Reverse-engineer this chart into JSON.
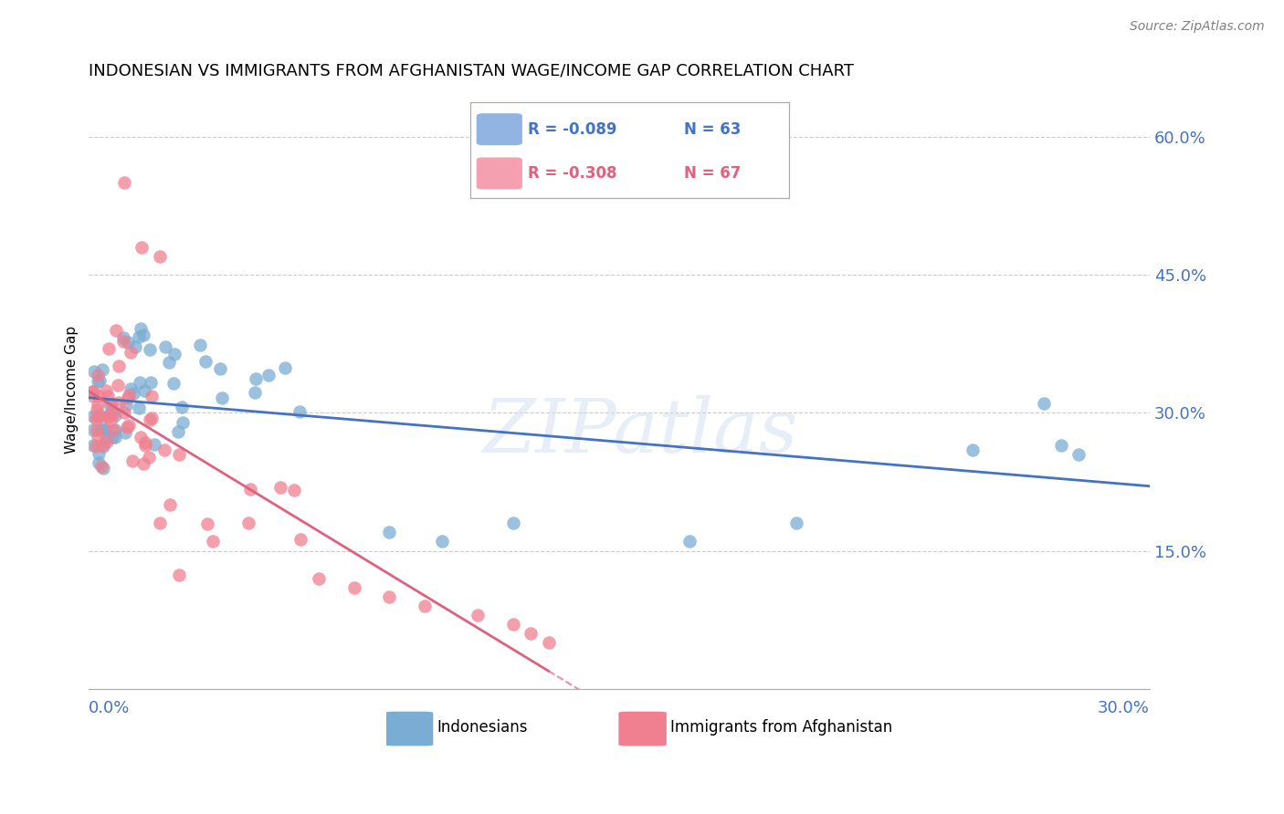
{
  "title": "INDONESIAN VS IMMIGRANTS FROM AFGHANISTAN WAGE/INCOME GAP CORRELATION CHART",
  "source": "Source: ZipAtlas.com",
  "ylabel": "Wage/Income Gap",
  "right_yticks": [
    0.15,
    0.3,
    0.45,
    0.6
  ],
  "xmin": 0.0,
  "xmax": 0.3,
  "ymin": 0.0,
  "ymax": 0.65,
  "legend_entries": [
    {
      "label_r": "R = -0.089",
      "label_n": "N = 63",
      "color": "#92b4e3"
    },
    {
      "label_r": "R = -0.308",
      "label_n": "N = 67",
      "color": "#f4a0b0"
    }
  ],
  "indonesians": {
    "color": "#7badd4",
    "scatter_color": "#7badd4",
    "x": [
      0.001,
      0.001,
      0.002,
      0.002,
      0.003,
      0.003,
      0.003,
      0.004,
      0.004,
      0.004,
      0.005,
      0.005,
      0.005,
      0.006,
      0.006,
      0.006,
      0.007,
      0.007,
      0.008,
      0.008,
      0.008,
      0.009,
      0.009,
      0.01,
      0.01,
      0.011,
      0.011,
      0.012,
      0.013,
      0.014,
      0.015,
      0.015,
      0.016,
      0.016,
      0.017,
      0.018,
      0.019,
      0.02,
      0.021,
      0.022,
      0.023,
      0.025,
      0.026,
      0.027,
      0.028,
      0.03,
      0.032,
      0.034,
      0.036,
      0.04,
      0.042,
      0.045,
      0.05,
      0.055,
      0.06,
      0.065,
      0.075,
      0.085,
      0.17,
      0.2,
      0.25,
      0.27,
      0.28
    ],
    "y": [
      0.27,
      0.25,
      0.28,
      0.26,
      0.29,
      0.27,
      0.25,
      0.26,
      0.24,
      0.28,
      0.27,
      0.25,
      0.26,
      0.28,
      0.26,
      0.25,
      0.29,
      0.3,
      0.28,
      0.27,
      0.26,
      0.38,
      0.36,
      0.37,
      0.34,
      0.36,
      0.33,
      0.35,
      0.34,
      0.38,
      0.4,
      0.38,
      0.4,
      0.37,
      0.39,
      0.36,
      0.35,
      0.27,
      0.28,
      0.35,
      0.37,
      0.38,
      0.35,
      0.32,
      0.28,
      0.27,
      0.3,
      0.28,
      0.26,
      0.27,
      0.3,
      0.32,
      0.33,
      0.29,
      0.27,
      0.16,
      0.17,
      0.16,
      0.18,
      0.17,
      0.26,
      0.31,
      0.26
    ]
  },
  "afghanistan": {
    "color": "#f08090",
    "x": [
      0.001,
      0.001,
      0.002,
      0.002,
      0.002,
      0.003,
      0.003,
      0.003,
      0.004,
      0.004,
      0.004,
      0.005,
      0.005,
      0.005,
      0.006,
      0.006,
      0.006,
      0.007,
      0.007,
      0.008,
      0.008,
      0.009,
      0.009,
      0.01,
      0.01,
      0.011,
      0.011,
      0.012,
      0.012,
      0.013,
      0.013,
      0.014,
      0.014,
      0.015,
      0.015,
      0.016,
      0.016,
      0.017,
      0.018,
      0.019,
      0.02,
      0.021,
      0.022,
      0.023,
      0.024,
      0.025,
      0.026,
      0.028,
      0.03,
      0.032,
      0.034,
      0.036,
      0.038,
      0.04,
      0.042,
      0.05,
      0.055,
      0.06,
      0.065,
      0.07,
      0.075,
      0.08,
      0.09,
      0.1,
      0.11,
      0.12,
      0.13
    ],
    "y": [
      0.3,
      0.28,
      0.31,
      0.29,
      0.27,
      0.33,
      0.31,
      0.29,
      0.36,
      0.34,
      0.32,
      0.35,
      0.33,
      0.31,
      0.37,
      0.35,
      0.33,
      0.36,
      0.34,
      0.35,
      0.33,
      0.38,
      0.36,
      0.37,
      0.35,
      0.36,
      0.34,
      0.35,
      0.33,
      0.36,
      0.34,
      0.4,
      0.38,
      0.37,
      0.35,
      0.36,
      0.34,
      0.33,
      0.32,
      0.31,
      0.3,
      0.29,
      0.28,
      0.29,
      0.27,
      0.26,
      0.25,
      0.24,
      0.23,
      0.22,
      0.21,
      0.2,
      0.19,
      0.18,
      0.17,
      0.16,
      0.15,
      0.14,
      0.13,
      0.12,
      0.11,
      0.1,
      0.09,
      0.08,
      0.07,
      0.06,
      0.05
    ]
  },
  "watermark_text": "ZIPatlas",
  "bg_color": "#ffffff",
  "grid_color": "#cccccc",
  "title_fontsize": 13,
  "axis_label_color": "#4472c4",
  "trend_blue": "#4472c4",
  "trend_pink": "#e06080"
}
